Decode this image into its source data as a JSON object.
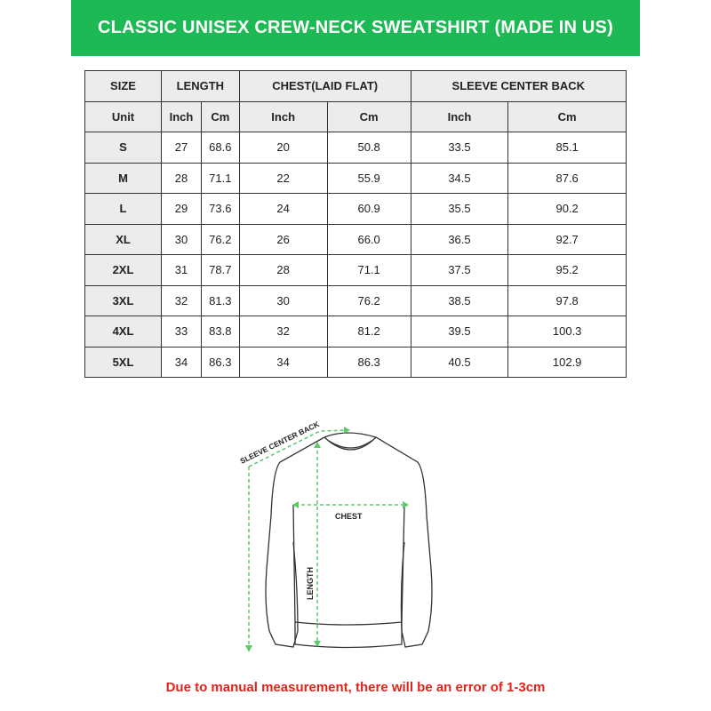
{
  "title": "CLASSIC UNISEX CREW-NECK SWEATSHIRT (MADE IN US)",
  "table": {
    "group_headers": [
      "SIZE",
      "LENGTH",
      "CHEST(LAID FLAT)",
      "SLEEVE CENTER BACK"
    ],
    "unit_row": [
      "Unit",
      "Inch",
      "Cm",
      "Inch",
      "Cm",
      "Inch",
      "Cm"
    ],
    "rows": [
      [
        "S",
        "27",
        "68.6",
        "20",
        "50.8",
        "33.5",
        "85.1"
      ],
      [
        "M",
        "28",
        "71.1",
        "22",
        "55.9",
        "34.5",
        "87.6"
      ],
      [
        "L",
        "29",
        "73.6",
        "24",
        "60.9",
        "35.5",
        "90.2"
      ],
      [
        "XL",
        "30",
        "76.2",
        "26",
        "66.0",
        "36.5",
        "92.7"
      ],
      [
        "2XL",
        "31",
        "78.7",
        "28",
        "71.1",
        "37.5",
        "95.2"
      ],
      [
        "3XL",
        "32",
        "81.3",
        "30",
        "76.2",
        "38.5",
        "97.8"
      ],
      [
        "4XL",
        "33",
        "83.8",
        "32",
        "81.2",
        "39.5",
        "100.3"
      ],
      [
        "5XL",
        "34",
        "86.3",
        "34",
        "86.3",
        "40.5",
        "102.9"
      ]
    ]
  },
  "diagram": {
    "sleeve_label": "SLEEVE CENTER BACK",
    "chest_label": "CHEST",
    "length_label": "LENGTH"
  },
  "footer": "Due to manual measurement, there will be an error of 1-3cm",
  "colors": {
    "banner": "#1db954",
    "header_cell": "#ececec",
    "arrow": "#5cc96a",
    "footer_text": "#e0241b"
  }
}
